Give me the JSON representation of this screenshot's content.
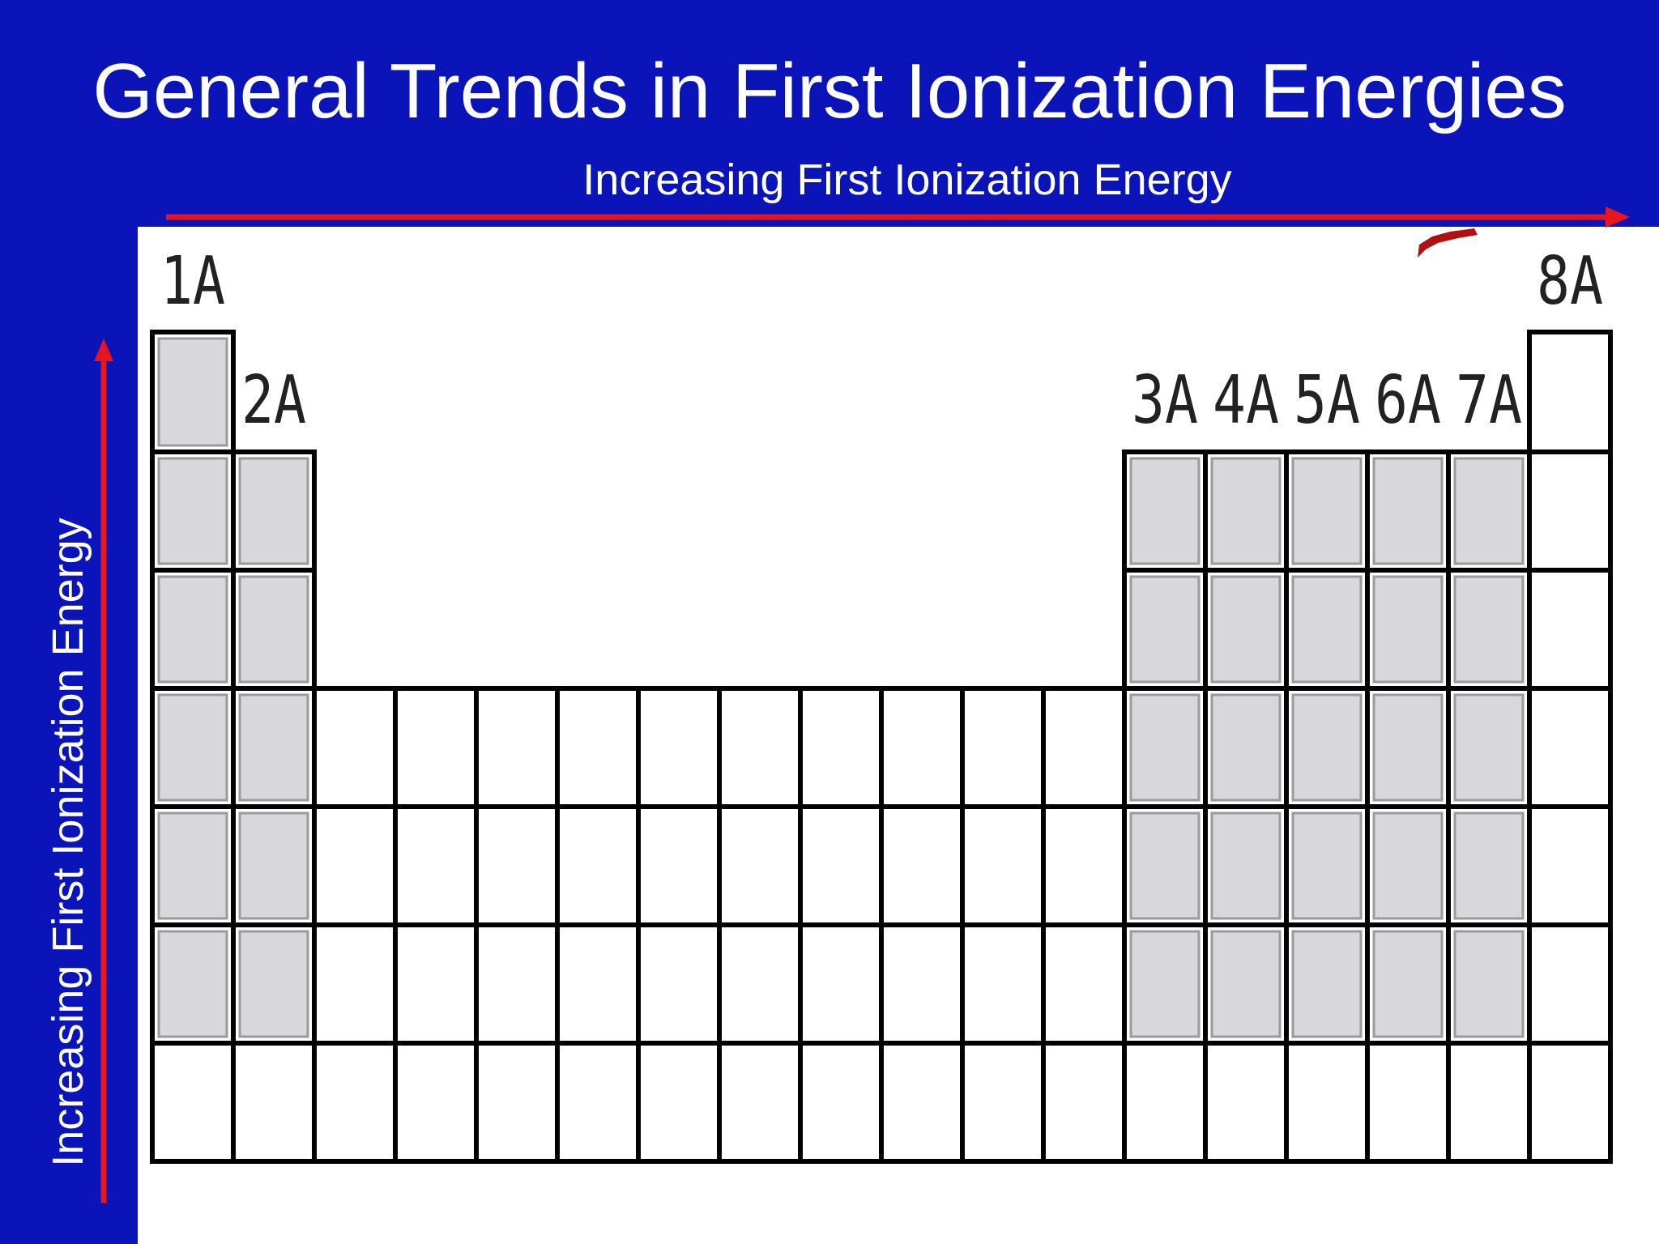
{
  "title": "General Trends in First Ionization Energies",
  "arrows": {
    "horizontal_label": "Increasing First Ionization Energy",
    "vertical_label": "Increasing First Ionization Energy",
    "color": "#e8141e"
  },
  "colors": {
    "background": "#0a14b8",
    "panel": "#ffffff",
    "grid": "#000000",
    "shaded_cell": "#d8d8dc",
    "shaded_cell_edge": "#9a9a9e"
  },
  "groups": {
    "g1": "1A",
    "g2": "2A",
    "g3": "3A",
    "g4": "4A",
    "g5": "5A",
    "g6": "6A",
    "g7": "7A",
    "g8": "8A"
  }
}
